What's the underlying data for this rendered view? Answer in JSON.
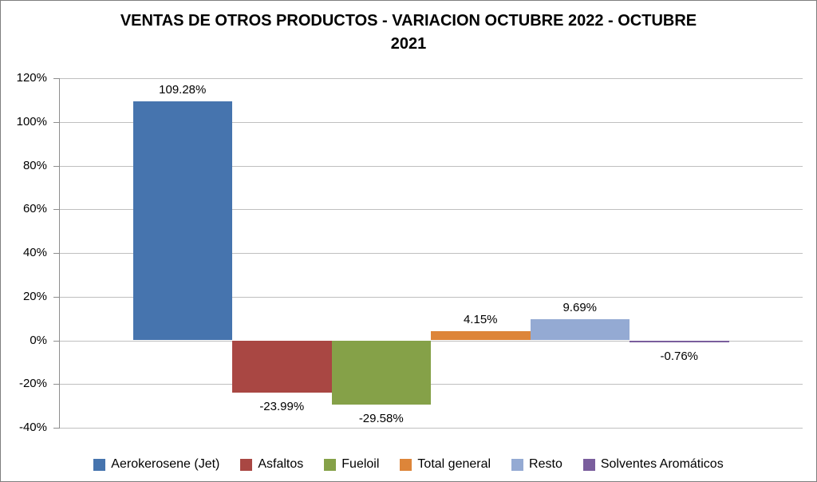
{
  "chart": {
    "title_line1": "VENTAS DE OTROS PRODUCTOS - VARIACION OCTUBRE 2022 - OCTUBRE",
    "title_line2": "2021"
  },
  "chart_data": {
    "type": "bar",
    "title": "VENTAS DE OTROS PRODUCTOS - VARIACION OCTUBRE 2022 - OCTUBRE 2021",
    "categories": [
      ""
    ],
    "series": [
      {
        "name": "Aerokerosene (Jet)",
        "value": 109.28,
        "data_label": "109.28%",
        "color": "#4674AE"
      },
      {
        "name": "Asfaltos",
        "value": -23.99,
        "data_label": "-23.99%",
        "color": "#A94743"
      },
      {
        "name": "Fueloil",
        "value": -29.58,
        "data_label": "-29.58%",
        "color": "#85A148"
      },
      {
        "name": "Total general",
        "value": 4.15,
        "data_label": "4.15%",
        "color": "#DD8539"
      },
      {
        "name": "Resto",
        "value": 9.69,
        "data_label": "9.69%",
        "color": "#94AAD3"
      },
      {
        "name": "Solventes Aromáticos",
        "value": -0.76,
        "data_label": "-0.76%",
        "color": "#7A5E9D"
      }
    ],
    "xlabel": "",
    "ylabel": "",
    "y_axis": {
      "min": -40,
      "max": 120,
      "step": 20,
      "tick_labels": [
        "120%",
        "100%",
        "80%",
        "60%",
        "40%",
        "20%",
        "0%",
        "-20%",
        "-40%"
      ]
    },
    "grid": true,
    "legend_position": "bottom",
    "colors": {
      "gridline": "#bfbfbf",
      "axis": "#8e8e8e",
      "border": "#7f7f7f",
      "background": "#ffffff",
      "text": "#000000"
    }
  }
}
